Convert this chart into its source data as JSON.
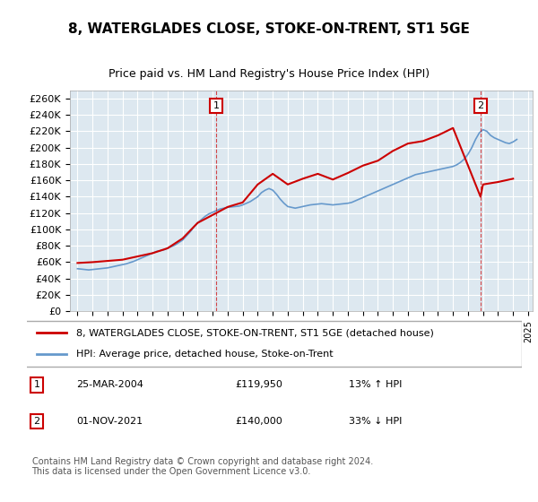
{
  "title": "8, WATERGLADES CLOSE, STOKE-ON-TRENT, ST1 5GE",
  "subtitle": "Price paid vs. HM Land Registry's House Price Index (HPI)",
  "legend_line1": "8, WATERGLADES CLOSE, STOKE-ON-TRENT, ST1 5GE (detached house)",
  "legend_line2": "HPI: Average price, detached house, Stoke-on-Trent",
  "footer": "Contains HM Land Registry data © Crown copyright and database right 2024.\nThis data is licensed under the Open Government Licence v3.0.",
  "sale1_label": "1",
  "sale1_date": "25-MAR-2004",
  "sale1_price": "£119,950",
  "sale1_hpi": "13% ↑ HPI",
  "sale2_label": "2",
  "sale2_date": "01-NOV-2021",
  "sale2_price": "£140,000",
  "sale2_hpi": "33% ↓ HPI",
  "sale1_color": "#cc0000",
  "sale2_color": "#cc0000",
  "hpi_color": "#6699cc",
  "property_color": "#cc0000",
  "background_plot": "#dde8f0",
  "grid_color": "#ffffff",
  "ylim": [
    0,
    270000
  ],
  "yticks": [
    0,
    20000,
    40000,
    60000,
    80000,
    100000,
    120000,
    140000,
    160000,
    180000,
    200000,
    220000,
    240000,
    260000
  ],
  "x_start_year": 1995,
  "x_end_year": 2025,
  "sale1_year": 2004.23,
  "sale2_year": 2021.83,
  "hpi_years": [
    1995.0,
    1995.25,
    1995.5,
    1995.75,
    1996.0,
    1996.25,
    1996.5,
    1996.75,
    1997.0,
    1997.25,
    1997.5,
    1997.75,
    1998.0,
    1998.25,
    1998.5,
    1998.75,
    1999.0,
    1999.25,
    1999.5,
    1999.75,
    2000.0,
    2000.25,
    2000.5,
    2000.75,
    2001.0,
    2001.25,
    2001.5,
    2001.75,
    2002.0,
    2002.25,
    2002.5,
    2002.75,
    2003.0,
    2003.25,
    2003.5,
    2003.75,
    2004.0,
    2004.25,
    2004.5,
    2004.75,
    2005.0,
    2005.25,
    2005.5,
    2005.75,
    2006.0,
    2006.25,
    2006.5,
    2006.75,
    2007.0,
    2007.25,
    2007.5,
    2007.75,
    2008.0,
    2008.25,
    2008.5,
    2008.75,
    2009.0,
    2009.25,
    2009.5,
    2009.75,
    2010.0,
    2010.25,
    2010.5,
    2010.75,
    2011.0,
    2011.25,
    2011.5,
    2011.75,
    2012.0,
    2012.25,
    2012.5,
    2012.75,
    2013.0,
    2013.25,
    2013.5,
    2013.75,
    2014.0,
    2014.25,
    2014.5,
    2014.75,
    2015.0,
    2015.25,
    2015.5,
    2015.75,
    2016.0,
    2016.25,
    2016.5,
    2016.75,
    2017.0,
    2017.25,
    2017.5,
    2017.75,
    2018.0,
    2018.25,
    2018.5,
    2018.75,
    2019.0,
    2019.25,
    2019.5,
    2019.75,
    2020.0,
    2020.25,
    2020.5,
    2020.75,
    2021.0,
    2021.25,
    2021.5,
    2021.75,
    2022.0,
    2022.25,
    2022.5,
    2022.75,
    2023.0,
    2023.25,
    2023.5,
    2023.75,
    2024.0,
    2024.25
  ],
  "hpi_values": [
    52000,
    51500,
    51000,
    50500,
    51000,
    51500,
    52000,
    52500,
    53000,
    54000,
    55000,
    56000,
    57000,
    58000,
    59500,
    61000,
    63000,
    65000,
    67000,
    69000,
    71000,
    73000,
    74000,
    75000,
    77000,
    79000,
    81000,
    84000,
    87000,
    92000,
    97000,
    103000,
    108000,
    112000,
    116000,
    119000,
    121000,
    123000,
    125000,
    126000,
    127000,
    127500,
    128000,
    128500,
    130000,
    132000,
    134000,
    137000,
    140000,
    145000,
    148000,
    150000,
    148000,
    143000,
    137000,
    132000,
    128000,
    127000,
    126000,
    127000,
    128000,
    129000,
    130000,
    130500,
    131000,
    131500,
    131000,
    130500,
    130000,
    130500,
    131000,
    131500,
    132000,
    133000,
    135000,
    137000,
    139000,
    141000,
    143000,
    145000,
    147000,
    149000,
    151000,
    153000,
    155000,
    157000,
    159000,
    161000,
    163000,
    165000,
    167000,
    168000,
    169000,
    170000,
    171000,
    172000,
    173000,
    174000,
    175000,
    176000,
    177000,
    179000,
    182000,
    186000,
    192000,
    200000,
    210000,
    218000,
    222000,
    220000,
    215000,
    212000,
    210000,
    208000,
    206000,
    205000,
    207000,
    210000
  ],
  "property_years": [
    1995.0,
    1996.0,
    1997.0,
    1998.0,
    1999.0,
    2000.0,
    2001.0,
    2002.0,
    2003.0,
    2004.23,
    2005.0,
    2006.0,
    2007.0,
    2008.0,
    2009.0,
    2010.0,
    2011.0,
    2012.0,
    2013.0,
    2014.0,
    2015.0,
    2016.0,
    2017.0,
    2018.0,
    2019.0,
    2020.0,
    2021.83,
    2022.0,
    2023.0,
    2024.0
  ],
  "property_values": [
    59000,
    60000,
    61500,
    63000,
    67000,
    71000,
    77000,
    89000,
    108000,
    119950,
    127500,
    133000,
    155000,
    168000,
    155000,
    162000,
    168000,
    161000,
    169000,
    178000,
    184000,
    196000,
    205000,
    208000,
    215000,
    224000,
    140000,
    155000,
    158000,
    162000
  ]
}
